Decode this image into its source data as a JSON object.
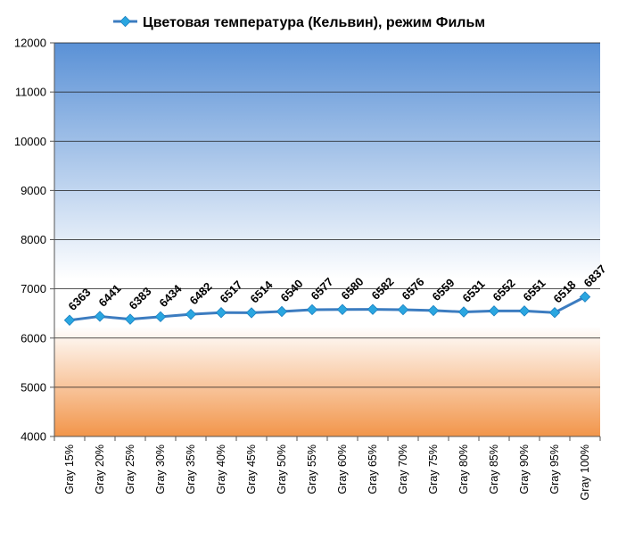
{
  "chart_data": {
    "type": "line",
    "title": "",
    "legend_position": "top",
    "grid": true,
    "categories": [
      "Gray 15%",
      "Gray 20%",
      "Gray 25%",
      "Gray 30%",
      "Gray 35%",
      "Gray 40%",
      "Gray 45%",
      "Gray 50%",
      "Gray 55%",
      "Gray 60%",
      "Gray 65%",
      "Gray 70%",
      "Gray 75%",
      "Gray 80%",
      "Gray 85%",
      "Gray 90%",
      "Gray 95%",
      "Gray 100%"
    ],
    "series": [
      {
        "name": "Цветовая температура (Кельвин), режим Фильм",
        "color": "#3c7cc0",
        "values": [
          6363,
          6441,
          6383,
          6434,
          6482,
          6517,
          6514,
          6540,
          6577,
          6580,
          6582,
          6576,
          6559,
          6531,
          6552,
          6551,
          6518,
          6837
        ],
        "labels": [
          "6363",
          "6441",
          "6383",
          "6434",
          "6482",
          "6517",
          "6514",
          "6540",
          "6577",
          "6580",
          "6582",
          "6576",
          "6559",
          "6531",
          "6552",
          "6551",
          "6518",
          "6837"
        ]
      }
    ],
    "ylim": [
      4000,
      12000
    ],
    "yticks": [
      "4000",
      "5000",
      "6000",
      "7000",
      "8000",
      "9000",
      "10000",
      "11000",
      "12000"
    ],
    "background_colors": {
      "top": "#5a91d6",
      "middle": "#ffffff",
      "bottom": "#f2954a"
    }
  }
}
